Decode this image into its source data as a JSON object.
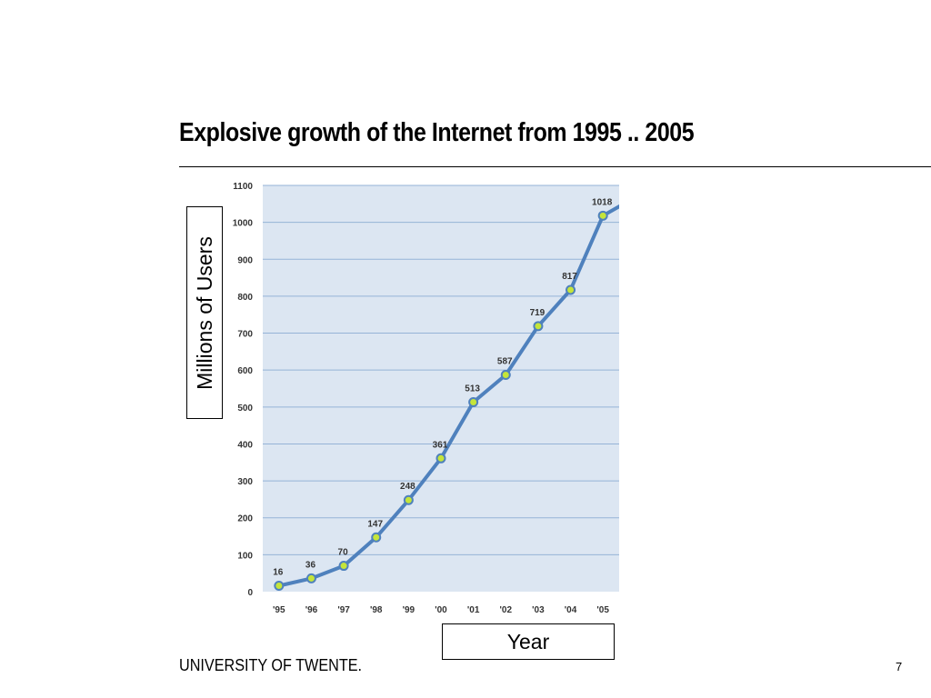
{
  "slide": {
    "title": "Explosive growth of the Internet from 1995 .. 2005",
    "footer": "UNIVERSITY OF TWENTE.",
    "page_number": "7"
  },
  "colors": {
    "plot_background": "#dce6f2",
    "gridline": "#95b3d7",
    "series_line": "#4f81bd",
    "marker_fill": "#c5e53a"
  },
  "chart_data": {
    "type": "line",
    "categories": [
      "'95",
      "'96",
      "'97",
      "'98",
      "'99",
      "'00",
      "'01",
      "'02",
      "'03",
      "'04",
      "'05"
    ],
    "series": [
      {
        "values": [
          16,
          36,
          70,
          147,
          248,
          361,
          513,
          587,
          719,
          817,
          1018
        ]
      }
    ],
    "data_labels": [
      "16",
      "36",
      "70",
      "147",
      "248",
      "361",
      "513",
      "587",
      "719",
      "817",
      "1018"
    ],
    "yticks": [
      0,
      100,
      200,
      300,
      400,
      500,
      600,
      700,
      800,
      900,
      1000,
      1100
    ],
    "ylim": [
      0,
      1100
    ],
    "xlabel": "Year",
    "ylabel": "Millions of Users",
    "grid": true,
    "line_continues_beyond_last_point": true
  }
}
